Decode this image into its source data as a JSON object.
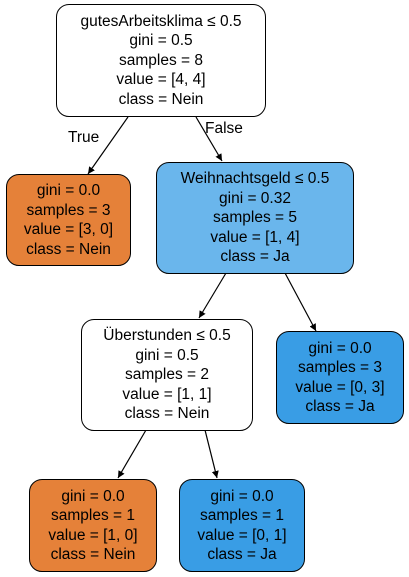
{
  "nodes": {
    "root": {
      "lines": [
        "gutesArbeitsklima ≤ 0.5",
        "gini = 0.5",
        "samples = 8",
        "value = [4, 4]",
        "class = Nein"
      ],
      "fill": "#ffffff"
    },
    "leaf_left": {
      "lines": [
        "gini = 0.0",
        "samples = 3",
        "value = [3, 0]",
        "class = Nein"
      ],
      "fill": "#e58139"
    },
    "weihnachtsgeld": {
      "lines": [
        "Weihnachtsgeld ≤ 0.5",
        "gini = 0.32",
        "samples = 5",
        "value = [1, 4]",
        "class = Ja"
      ],
      "fill": "#6ab6ec"
    },
    "ueberstunden": {
      "lines": [
        "Überstunden ≤ 0.5",
        "gini = 0.5",
        "samples = 2",
        "value = [1, 1]",
        "class = Nein"
      ],
      "fill": "#ffffff"
    },
    "leaf_ja_3": {
      "lines": [
        "gini = 0.0",
        "samples = 3",
        "value = [0, 3]",
        "class = Ja"
      ],
      "fill": "#399de5"
    },
    "leaf_nein_1": {
      "lines": [
        "gini = 0.0",
        "samples = 1",
        "value = [1, 0]",
        "class = Nein"
      ],
      "fill": "#e58139"
    },
    "leaf_ja_1": {
      "lines": [
        "gini = 0.0",
        "samples = 1",
        "value = [0, 1]",
        "class = Ja"
      ],
      "fill": "#399de5"
    }
  },
  "edge_labels": {
    "true_label": "True",
    "false_label": "False"
  },
  "colors": {
    "line": "#000000",
    "text": "#000000"
  }
}
